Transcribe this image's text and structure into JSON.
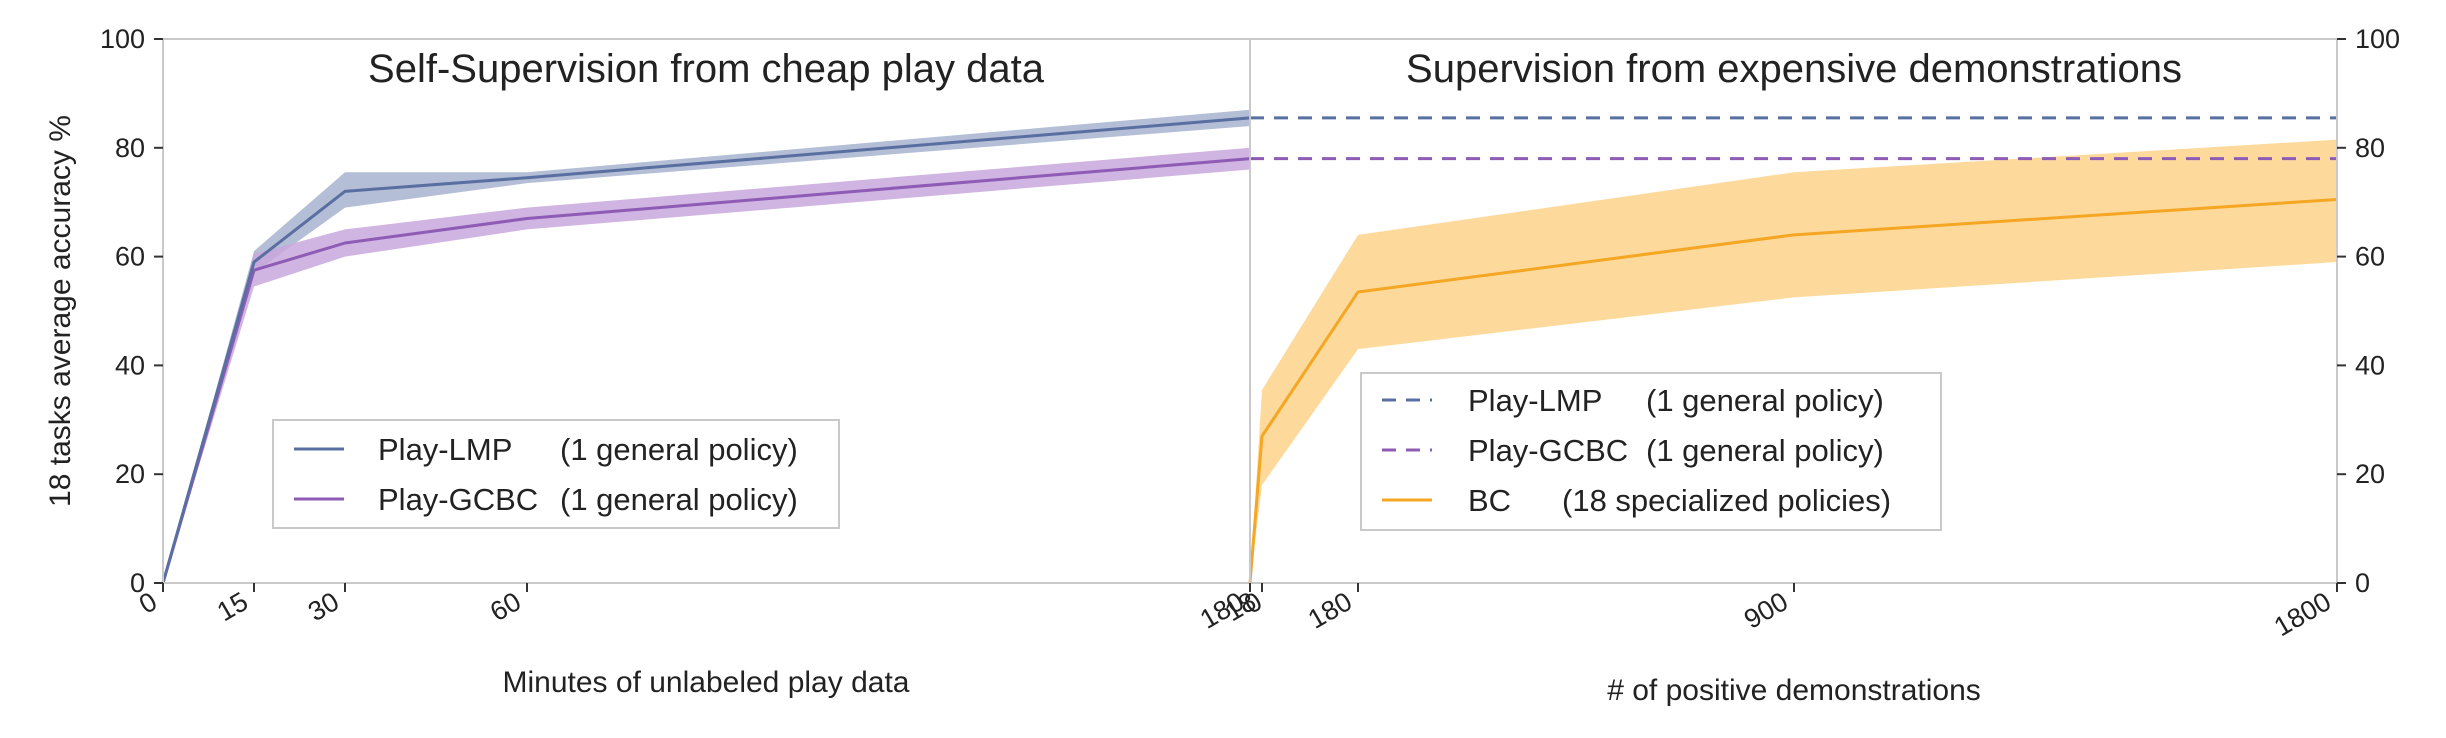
{
  "colors": {
    "lmp": "#5a6fa1",
    "lmp_band": "#a7b3cf",
    "gcbc": "#8e5bb5",
    "gcbc_band": "#c8a7dc",
    "bc": "#f5a623",
    "bc_band": "#fdd38a",
    "axis": "#c9c9c9",
    "legend_border": "#c9c9c9"
  },
  "chart_data": [
    {
      "type": "line",
      "title": "Self-Supervision from cheap play data",
      "xlabel": "Minutes of unlabeled play data",
      "ylabel": "18 tasks average accuracy %",
      "xlim": [
        0,
        180
      ],
      "ylim": [
        0,
        100
      ],
      "x_ticks": [
        "0",
        "15",
        "30",
        "60",
        "180"
      ],
      "y_ticks": [
        "0",
        "20",
        "40",
        "60",
        "80",
        "100"
      ],
      "legend_position": "lower-left",
      "series": [
        {
          "name": "Play-LMP",
          "legend_suffix": "(1 general policy)",
          "x": [
            0,
            15,
            30,
            60,
            180
          ],
          "y": [
            0,
            59,
            72,
            74.5,
            85.5
          ],
          "lower": [
            0,
            57,
            69,
            73.5,
            84
          ],
          "upper": [
            0,
            61,
            75.5,
            75.5,
            87
          ]
        },
        {
          "name": "Play-GCBC",
          "legend_suffix": "(1 general policy)",
          "x": [
            0,
            15,
            30,
            60,
            180
          ],
          "y": [
            0,
            57.5,
            62.5,
            67,
            78
          ],
          "lower": [
            0,
            54.5,
            60,
            65,
            76
          ],
          "upper": [
            0,
            60.5,
            65,
            69,
            80
          ]
        }
      ]
    },
    {
      "type": "line",
      "title": "Supervision from expensive demonstrations",
      "xlabel": "# of positive demonstrations",
      "ylabel": "",
      "xlim": [
        0,
        1800
      ],
      "ylim": [
        0,
        100
      ],
      "x_ticks": [
        "0",
        "18",
        "180",
        "900",
        "1800"
      ],
      "y_ticks": [
        "0",
        "20",
        "40",
        "60",
        "80",
        "100"
      ],
      "legend_position": "lower-center",
      "series": [
        {
          "name": "Play-LMP",
          "legend_suffix": "(1 general policy)",
          "style": "dashed",
          "x": [
            0,
            1800
          ],
          "y": [
            85.5,
            85.5
          ]
        },
        {
          "name": "Play-GCBC",
          "legend_suffix": "(1 general policy)",
          "style": "dashed",
          "x": [
            0,
            1800
          ],
          "y": [
            78,
            78
          ]
        },
        {
          "name": "BC",
          "legend_suffix": "(18 specialized policies)",
          "x": [
            0,
            18,
            180,
            900,
            1800
          ],
          "y": [
            0,
            27,
            53.5,
            64,
            70.5
          ],
          "lower": [
            0,
            18,
            43,
            52.5,
            59
          ],
          "upper": [
            0,
            35.5,
            64,
            75.5,
            81.5
          ]
        }
      ]
    }
  ]
}
